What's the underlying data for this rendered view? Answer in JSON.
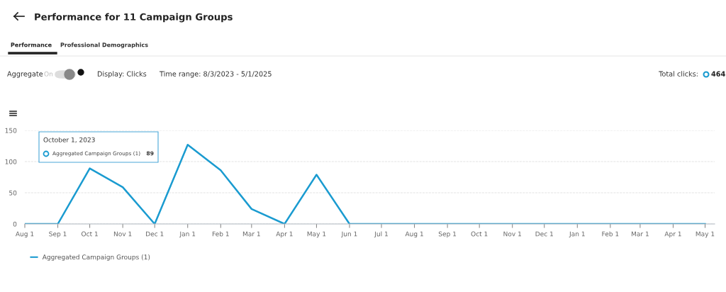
{
  "chart_data": {
    "type": "line",
    "title": "Performance for 11 Campaign Groups",
    "x": [
      "2023-08-01",
      "2023-09-01",
      "2023-10-01",
      "2023-11-01",
      "2023-12-01",
      "2024-01-01",
      "2024-02-01",
      "2024-03-01",
      "2024-04-01",
      "2024-05-01",
      "2024-06-01",
      "2024-07-01",
      "2024-08-01",
      "2024-09-01",
      "2024-10-01",
      "2024-11-01",
      "2024-12-01",
      "2025-01-01",
      "2025-02-01",
      "2025-03-01",
      "2025-04-01",
      "2025-05-01"
    ],
    "series": [
      {
        "name": "Aggregated Campaign Groups (1)",
        "color": "#1a9bd0",
        "values": [
          0,
          0,
          89,
          59,
          0,
          127,
          86,
          24,
          0,
          79,
          0,
          0,
          0,
          0,
          0,
          0,
          0,
          0,
          0,
          0,
          0,
          0
        ]
      }
    ],
    "xlim": [
      "2023-08-01",
      "2025-05-10"
    ],
    "xticks": [
      {
        "value": "2023-08-01",
        "label": "Aug 1"
      },
      {
        "value": "2023-09-01",
        "label": "Sep 1"
      },
      {
        "value": "2023-10-01",
        "label": "Oct 1"
      },
      {
        "value": "2023-11-01",
        "label": "Nov 1"
      },
      {
        "value": "2023-12-01",
        "label": "Dec 1"
      },
      {
        "value": "2024-01-01",
        "label": "Jan 1"
      },
      {
        "value": "2024-02-01",
        "label": "Feb 1"
      },
      {
        "value": "2024-03-01",
        "label": "Mar 1"
      },
      {
        "value": "2024-04-01",
        "label": "Apr 1"
      },
      {
        "value": "2024-05-01",
        "label": "May 1"
      },
      {
        "value": "2024-06-01",
        "label": "Jun 1"
      },
      {
        "value": "2024-07-01",
        "label": "Jul 1"
      },
      {
        "value": "2024-08-01",
        "label": "Aug 1"
      },
      {
        "value": "2024-09-01",
        "label": "Sep 1"
      },
      {
        "value": "2024-10-01",
        "label": "Oct 1"
      },
      {
        "value": "2024-11-01",
        "label": "Nov 1"
      },
      {
        "value": "2024-12-01",
        "label": "Dec 1"
      },
      {
        "value": "2025-01-01",
        "label": "Jan 1"
      },
      {
        "value": "2025-02-01",
        "label": "Feb 1"
      },
      {
        "value": "2025-03-01",
        "label": "Mar 1"
      },
      {
        "value": "2025-04-01",
        "label": "Apr 1"
      },
      {
        "value": "2025-05-01",
        "label": "May 1"
      }
    ],
    "ylim": [
      0,
      150
    ],
    "yticks": [
      0,
      50,
      100,
      150
    ],
    "grid": "y",
    "legend": "bottom left",
    "marker": "none",
    "line_style": "solid",
    "annotations": [
      "Performance",
      "Professional Demographics",
      "Aggregate",
      "On",
      "Display: Clicks",
      "Time range: 8/3/2023 - 5/1/2025",
      "Total clicks:",
      "464",
      "October 1, 2023",
      "Aggregated Campaign Groups (1)",
      "89"
    ]
  }
}
